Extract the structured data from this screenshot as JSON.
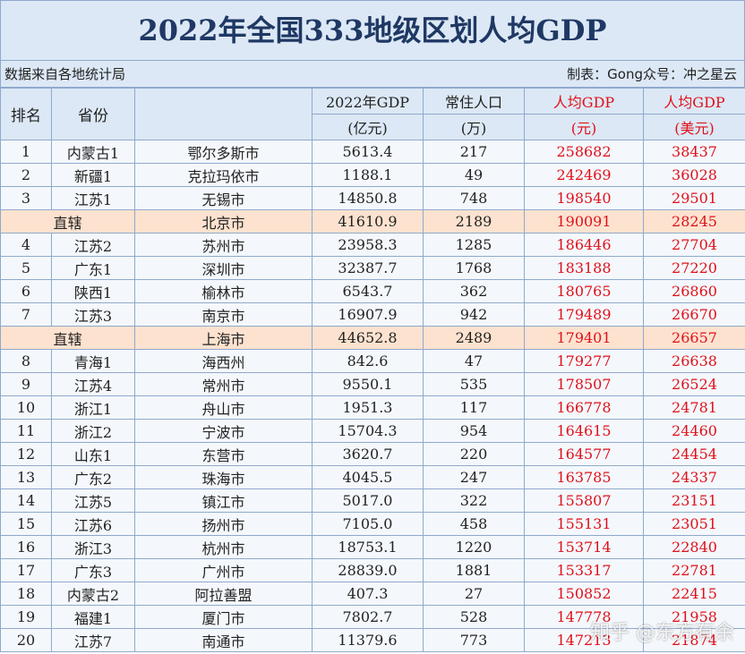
{
  "title": "2022年全国333地级区划人均GDP",
  "source": "数据来自各地统计局",
  "credit": "制表：Gong众号：冲之星云",
  "header": {
    "rank": "排名",
    "province": "省份",
    "gdp": "2022年GDP",
    "gdp_unit": "(亿元)",
    "pop": "常住人口",
    "pop_unit": "(万)",
    "pc": "人均GDP",
    "pc_unit": "(元)",
    "usd": "人均GDP",
    "usd_unit": "(美元)"
  },
  "rows": [
    {
      "rank": "1",
      "province": "内蒙古1",
      "city": "鄂尔多斯市",
      "gdp": "5613.4",
      "pop": "217",
      "pc": "258682",
      "usd": "38437"
    },
    {
      "rank": "2",
      "province": "新疆1",
      "city": "克拉玛依市",
      "gdp": "1188.1",
      "pop": "49",
      "pc": "242469",
      "usd": "36028"
    },
    {
      "rank": "3",
      "province": "江苏1",
      "city": "无锡市",
      "gdp": "14850.8",
      "pop": "748",
      "pc": "198540",
      "usd": "29501"
    },
    {
      "province": "直辖",
      "city": "北京市",
      "gdp": "41610.9",
      "pop": "2189",
      "pc": "190091",
      "usd": "28245"
    },
    {
      "rank": "4",
      "province": "江苏2",
      "city": "苏州市",
      "gdp": "23958.3",
      "pop": "1285",
      "pc": "186446",
      "usd": "27704"
    },
    {
      "rank": "5",
      "province": "广东1",
      "city": "深圳市",
      "gdp": "32387.7",
      "pop": "1768",
      "pc": "183188",
      "usd": "27220"
    },
    {
      "rank": "6",
      "province": "陕西1",
      "city": "榆林市",
      "gdp": "6543.7",
      "pop": "362",
      "pc": "180765",
      "usd": "26860"
    },
    {
      "rank": "7",
      "province": "江苏3",
      "city": "南京市",
      "gdp": "16907.9",
      "pop": "942",
      "pc": "179489",
      "usd": "26670"
    },
    {
      "province": "直辖",
      "city": "上海市",
      "gdp": "44652.8",
      "pop": "2489",
      "pc": "179401",
      "usd": "26657"
    },
    {
      "rank": "8",
      "province": "青海1",
      "city": "海西州",
      "gdp": "842.6",
      "pop": "47",
      "pc": "179277",
      "usd": "26638"
    },
    {
      "rank": "9",
      "province": "江苏4",
      "city": "常州市",
      "gdp": "9550.1",
      "pop": "535",
      "pc": "178507",
      "usd": "26524"
    },
    {
      "rank": "10",
      "province": "浙江1",
      "city": "舟山市",
      "gdp": "1951.3",
      "pop": "117",
      "pc": "166778",
      "usd": "24781"
    },
    {
      "rank": "11",
      "province": "浙江2",
      "city": "宁波市",
      "gdp": "15704.3",
      "pop": "954",
      "pc": "164615",
      "usd": "24460"
    },
    {
      "rank": "12",
      "province": "山东1",
      "city": "东营市",
      "gdp": "3620.7",
      "pop": "220",
      "pc": "164577",
      "usd": "24454"
    },
    {
      "rank": "13",
      "province": "广东2",
      "city": "珠海市",
      "gdp": "4045.5",
      "pop": "247",
      "pc": "163785",
      "usd": "24337"
    },
    {
      "rank": "14",
      "province": "江苏5",
      "city": "镇江市",
      "gdp": "5017.0",
      "pop": "322",
      "pc": "155807",
      "usd": "23151"
    },
    {
      "rank": "15",
      "province": "江苏6",
      "city": "扬州市",
      "gdp": "7105.0",
      "pop": "458",
      "pc": "155131",
      "usd": "23051"
    },
    {
      "rank": "16",
      "province": "浙江3",
      "city": "杭州市",
      "gdp": "18753.1",
      "pop": "1220",
      "pc": "153714",
      "usd": "22840"
    },
    {
      "rank": "17",
      "province": "广东3",
      "city": "广州市",
      "gdp": "28839.0",
      "pop": "1881",
      "pc": "153317",
      "usd": "22781"
    },
    {
      "rank": "18",
      "province": "内蒙古2",
      "city": "阿拉善盟",
      "gdp": "407.3",
      "pop": "27",
      "pc": "150852",
      "usd": "22415"
    },
    {
      "rank": "19",
      "province": "福建1",
      "city": "厦门市",
      "gdp": "7802.7",
      "pop": "528",
      "pc": "147778",
      "usd": "21958"
    },
    {
      "rank": "20",
      "province": "江苏7",
      "city": "南通市",
      "gdp": "11379.6",
      "pop": "773",
      "pc": "147213",
      "usd": "21874"
    }
  ],
  "watermark": "知乎 @东方有余"
}
